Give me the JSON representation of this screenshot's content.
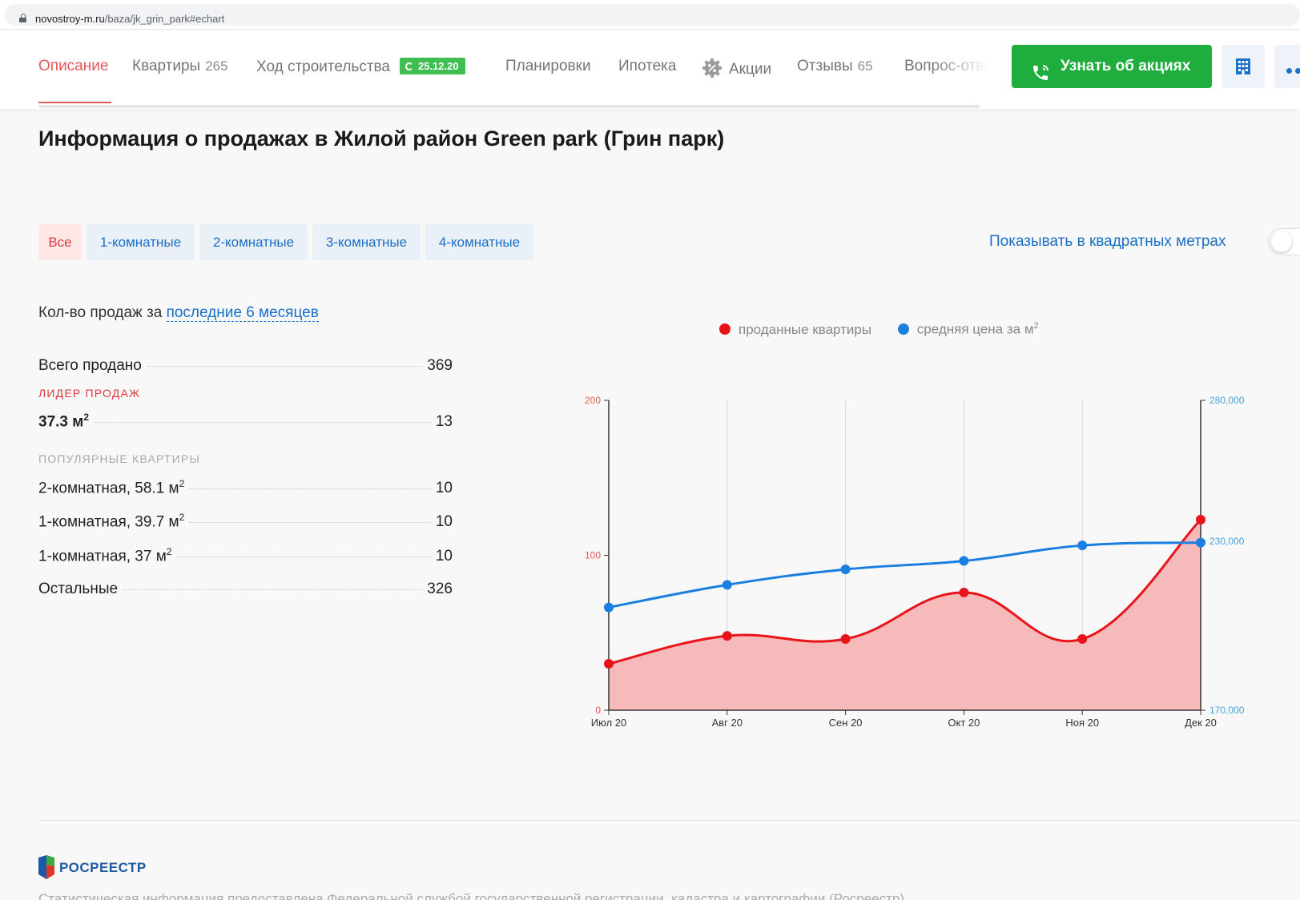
{
  "browser": {
    "url_domain": "novostroy-m.ru",
    "url_path": "/baza/jk_grin_park#echart"
  },
  "nav": {
    "items": [
      {
        "label": "Описание",
        "active": true
      },
      {
        "label": "Квартиры",
        "count": "265"
      },
      {
        "label": "Ход строительства",
        "badge": "25.12.20"
      },
      {
        "label": "Планировки"
      },
      {
        "label": "Ипотека"
      },
      {
        "label": "Акции",
        "icon": "discount-gear-icon"
      },
      {
        "label": "Отзывы",
        "count": "65"
      },
      {
        "label": "Вопрос-отве"
      }
    ],
    "cta_label": "Узнать об акциях",
    "cta_icon": "phone-icon",
    "building_icon": "building-icon",
    "more_icon": "more-dots-icon"
  },
  "section_title": "Информация о продажах в Жилой район Green park (Грин парк)",
  "filters": {
    "items": [
      "Все",
      "1-комнатные",
      "2-комнатные",
      "3-комнатные",
      "4-комнатные"
    ],
    "selected": "Все"
  },
  "sqm_toggle_label": "Показывать в квадратных метрах",
  "stats": {
    "heading_prefix": "Кол-во продаж за",
    "period_link": "последние 6 месяцев",
    "total_label": "Всего продано",
    "total_value": "369",
    "leader_caption": "ЛИДЕР ПРОДАЖ",
    "leader_label": "37.3 м",
    "leader_value": "13",
    "popular_caption": "ПОПУЛЯРНЫЕ КВАРТИРЫ",
    "popular": [
      {
        "label": "2-комнатная, 58.1 м",
        "value": "10"
      },
      {
        "label": "1-комнатная, 39.7 м",
        "value": "10"
      },
      {
        "label": "1-комнатная, 37 м",
        "value": "10"
      }
    ],
    "rest_label": "Остальные",
    "rest_value": "326",
    "sup": "2"
  },
  "chart_data": {
    "type": "line",
    "categories": [
      "Июл 20",
      "Авг 20",
      "Сен 20",
      "Окт 20",
      "Ноя 20",
      "Дек 20"
    ],
    "series": [
      {
        "name": "проданные квартиры",
        "axis": "left",
        "color": "#e8141a",
        "area_fill": "#f5b6b6",
        "values": [
          30,
          48,
          46,
          76,
          46,
          123
        ]
      },
      {
        "name": "средняя цена за м",
        "axis": "right",
        "color": "#1a7fe0",
        "values": [
          206500,
          214500,
          220000,
          223000,
          228500,
          229500
        ]
      }
    ],
    "legend_sup": "2",
    "left_axis": {
      "min": 0,
      "max": 200,
      "ticks": [
        "0",
        "100",
        "200"
      ],
      "color": "#e35a5a"
    },
    "right_axis": {
      "min": 170000,
      "max": 280000,
      "ticks": [
        "170,000",
        "230,000",
        "280,000"
      ],
      "tick_values": [
        170000,
        230000,
        280000
      ],
      "color": "#4ca3dd"
    },
    "grid": "vertical",
    "legend_position": "top-center"
  },
  "footer": {
    "logo_text": "РОСРЕЕСТР",
    "note": "Статистическая информация предоставлена Федеральной службой государственной регистрации, кадастра и картографии (Росреестр)"
  }
}
